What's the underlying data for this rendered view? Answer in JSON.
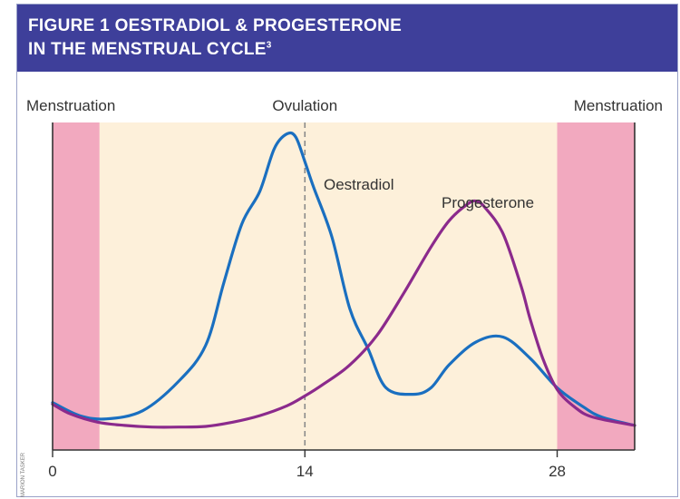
{
  "figure": {
    "title_line1": "FIGURE 1 OESTRADIOL & PROGESTERONE",
    "title_line2": "IN THE MENSTRUAL CYCLE",
    "title_sup": "3",
    "credit": "MARION TASKER"
  },
  "chart_data": {
    "type": "line",
    "title": "FIGURE 1 OESTRADIOL & PROGESTERONE IN THE MENSTRUAL CYCLE",
    "xlabel": "",
    "ylabel": "",
    "xlim": [
      0,
      32.3
    ],
    "ylim": [
      0,
      100
    ],
    "x_ticks": [
      0,
      14,
      28
    ],
    "x_tick_labels": [
      "0",
      "14",
      "28"
    ],
    "grid": false,
    "legend": "none",
    "phases": [
      {
        "label": "Menstruation",
        "start": 0,
        "end": 2.6,
        "color": "#f2a9bf"
      },
      {
        "label": "Menstruation",
        "start": 28,
        "end": 32.3,
        "color": "#f2a9bf"
      }
    ],
    "background_color": "#fdf0da",
    "annotations": [
      {
        "text": "Ovulation",
        "x": 14,
        "type": "vertical-dashed-line"
      }
    ],
    "series": [
      {
        "name": "Oestradiol",
        "color": "#1a6fc0",
        "x": [
          0,
          1.5,
          3,
          5,
          7,
          8.5,
          9.5,
          10.5,
          11.5,
          12.3,
          13,
          13.5,
          14,
          14.5,
          15.5,
          16.5,
          17.5,
          18.5,
          20,
          21,
          22,
          23.5,
          25,
          26.5,
          28,
          29.5,
          30.5,
          32.3
        ],
        "y": [
          14.5,
          10.5,
          9.5,
          12,
          21,
          32,
          51,
          69,
          79,
          92,
          96.5,
          95.5,
          88,
          80,
          65,
          43,
          31,
          19,
          17,
          19,
          26,
          33,
          34.5,
          28,
          19,
          13,
          10,
          7.5
        ]
      },
      {
        "name": "Progesterone",
        "color": "#8b2a8c",
        "x": [
          0,
          1,
          2.5,
          4,
          5.5,
          7,
          8.5,
          10,
          11.5,
          13,
          14,
          15,
          16.5,
          18,
          19.5,
          21,
          22,
          23,
          23.5,
          24,
          25,
          26,
          26.5,
          27.2,
          28,
          29,
          30,
          32.3
        ],
        "y": [
          14,
          11,
          8.5,
          7.5,
          7,
          7,
          7.2,
          8.5,
          10.5,
          13.5,
          16.5,
          20,
          26,
          35,
          48,
          62,
          70,
          75,
          76,
          74,
          66,
          50,
          40,
          28,
          18.5,
          13,
          10,
          7.5
        ]
      }
    ]
  }
}
